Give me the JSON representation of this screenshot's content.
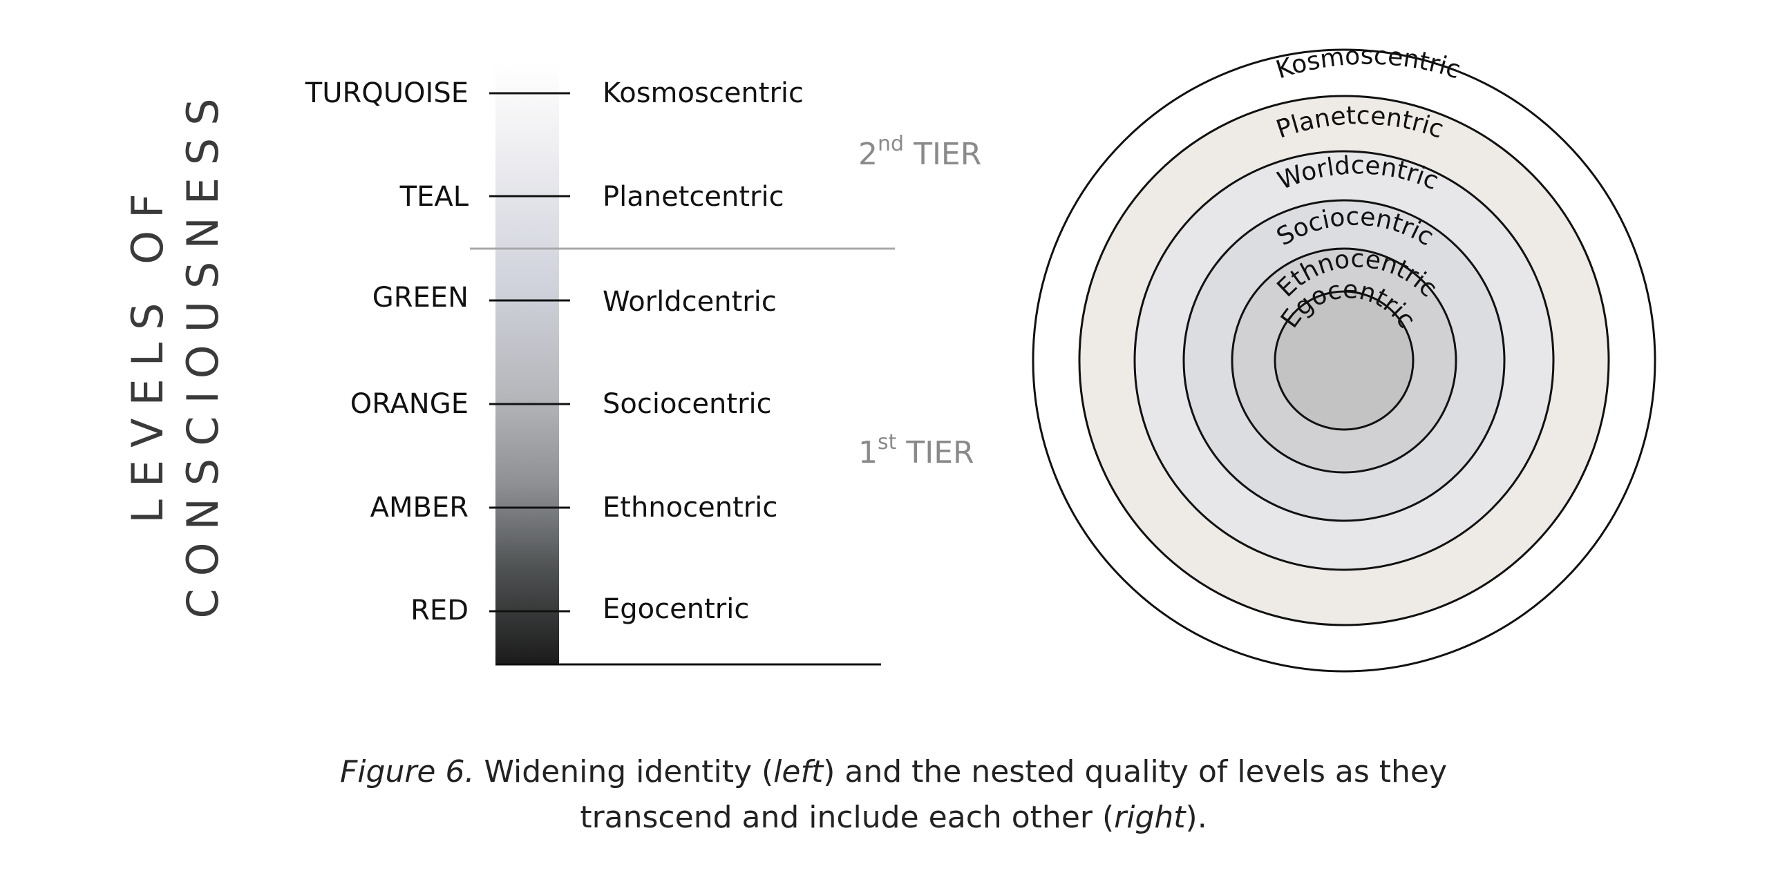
{
  "vertical_title": [
    "LEVELS OF",
    "CONSCIOUSNESS"
  ],
  "levels": [
    {
      "color_name": "TURQUOISE",
      "view": "Kosmoscentric"
    },
    {
      "color_name": "TEAL",
      "view": "Planetcentric"
    },
    {
      "color_name": "GREEN",
      "view": "Worldcentric"
    },
    {
      "color_name": "ORANGE",
      "view": "Sociocentric"
    },
    {
      "color_name": "AMBER",
      "view": "Ethnocentric"
    },
    {
      "color_name": "RED",
      "view": "Egocentric"
    }
  ],
  "tiers": [
    {
      "number": "2",
      "suffix": "nd",
      "label": "TIER"
    },
    {
      "number": "1",
      "suffix": "st",
      "label": "TIER"
    }
  ],
  "rings": [
    {
      "label": "Kosmoscentric",
      "fill": "#ffffff"
    },
    {
      "label": "Planetcentric",
      "fill": "#eeebe7"
    },
    {
      "label": "Worldcentric",
      "fill": "#e7e7e9"
    },
    {
      "label": "Sociocentric",
      "fill": "#dcdde0"
    },
    {
      "label": "Ethnocentric",
      "fill": "#d1d1d3"
    },
    {
      "label": "Egocentric",
      "fill": "#c3c3c3",
      "text_color": "#555555"
    }
  ],
  "caption": {
    "figure_label": "Figure 6.",
    "part1": " Widening identity (",
    "left_word": "left",
    "part2": ") and the nested quality of levels as they",
    "part3": "transcend and include each other (",
    "right_word": "right",
    "part4": ")."
  }
}
